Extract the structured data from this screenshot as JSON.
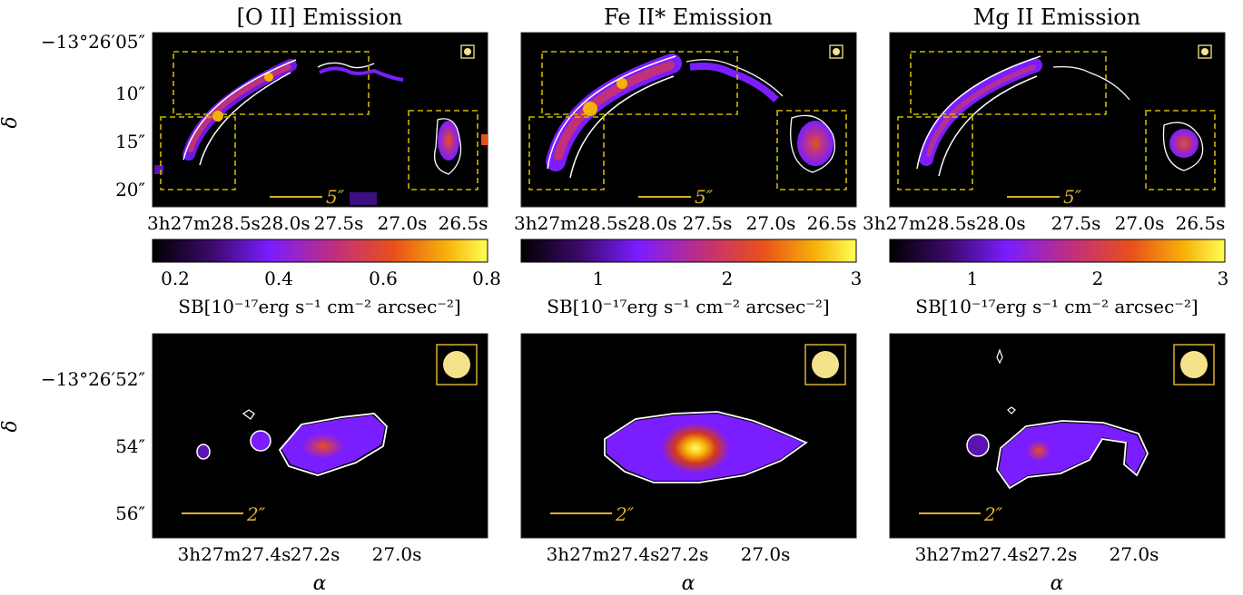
{
  "colors": {
    "background": "#000000",
    "contour": "#ffffff",
    "box": "#c9b800",
    "scalebar": "#d9b030",
    "beam": "#f4e38a",
    "colormap": [
      "#000000",
      "#3d0a6e",
      "#7a1dff",
      "#c2307a",
      "#e8501a",
      "#f7b20a",
      "#ffff55"
    ]
  },
  "top_row": {
    "ylabel": "δ",
    "y_ticks": [
      "−13°26′05″",
      "10″",
      "15″",
      "20″"
    ],
    "x_ticks_left": "3h27m28.5s28.0s",
    "x_ticks": [
      "27.5s",
      "27.0s",
      "26.5s"
    ],
    "scalebar_label": "5″",
    "panels": [
      {
        "title": "[O II] Emission",
        "colorbar": {
          "ticks": [
            "0.2",
            "0.4",
            "0.6",
            "0.8"
          ],
          "range": [
            0.15,
            0.8
          ],
          "label": "SB[10⁻¹⁷erg s⁻¹ cm⁻² arcsec⁻²]"
        }
      },
      {
        "title": "Fe II* Emission",
        "colorbar": {
          "ticks": [
            "1",
            "2",
            "3"
          ],
          "range": [
            0.4,
            3
          ],
          "label": "SB[10⁻¹⁷erg s⁻¹ cm⁻² arcsec⁻²]"
        }
      },
      {
        "title": "Mg II Emission",
        "colorbar": {
          "ticks": [
            "1",
            "2",
            "3"
          ],
          "range": [
            0.4,
            3
          ],
          "label": "SB[10⁻¹⁷erg s⁻¹ cm⁻² arcsec⁻²]"
        }
      }
    ]
  },
  "bottom_row": {
    "ylabel": "δ",
    "xlabel": "α",
    "y_ticks": [
      "−13°26′52″",
      "54″",
      "56″"
    ],
    "x_ticks": [
      "3h27m27.4s",
      "27.2s",
      "27.0s"
    ],
    "scalebar_label": "2″",
    "panels": [
      {
        "name": "oii-zoom"
      },
      {
        "name": "feii-zoom"
      },
      {
        "name": "mgii-zoom"
      }
    ]
  }
}
